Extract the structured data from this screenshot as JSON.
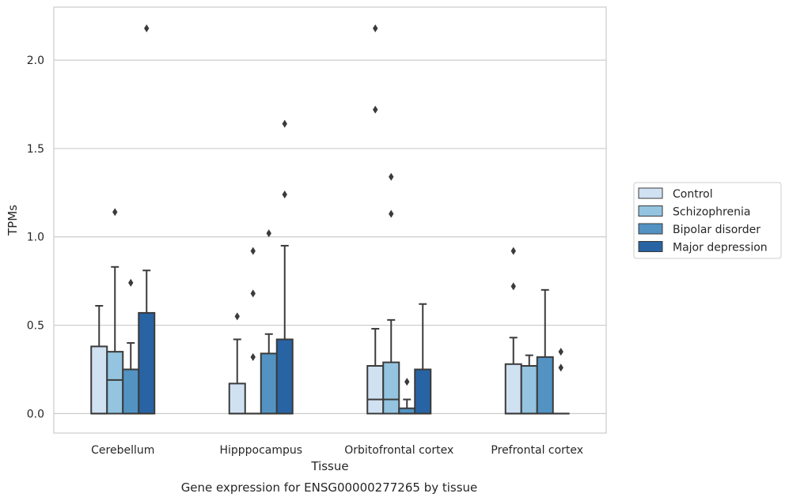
{
  "chart_data": {
    "type": "box",
    "title": "",
    "caption": "Gene expression for ENSG00000277265 by tissue",
    "xlabel": "Tissue",
    "ylabel": "TPMs",
    "ylim": [
      -0.11,
      2.3
    ],
    "yticks": [
      0.0,
      0.5,
      1.0,
      1.5,
      2.0
    ],
    "ytick_labels": [
      "0.0",
      "0.5",
      "1.0",
      "1.5",
      "2.0"
    ],
    "grid": "horizontal",
    "legend_position": "right",
    "categories": [
      "Cerebellum",
      "Hipppocampus",
      "Orbitofrontal cortex",
      "Prefrontal cortex"
    ],
    "series": [
      {
        "name": "Control",
        "color": "#d0e1f2",
        "boxes": [
          {
            "q1": 0.0,
            "median": 0.0,
            "q3": 0.38,
            "whislo": 0.0,
            "whishi": 0.61,
            "fliers": []
          },
          {
            "q1": 0.0,
            "median": 0.0,
            "q3": 0.17,
            "whislo": 0.0,
            "whishi": 0.42,
            "fliers": [
              0.55
            ]
          },
          {
            "q1": 0.0,
            "median": 0.08,
            "q3": 0.27,
            "whislo": 0.0,
            "whishi": 0.48,
            "fliers": [
              1.72,
              2.18
            ]
          },
          {
            "q1": 0.0,
            "median": 0.0,
            "q3": 0.28,
            "whislo": 0.0,
            "whishi": 0.43,
            "fliers": [
              0.72,
              0.92
            ]
          }
        ]
      },
      {
        "name": "Schizophrenia",
        "color": "#94c4df",
        "boxes": [
          {
            "q1": 0.0,
            "median": 0.19,
            "q3": 0.35,
            "whislo": 0.0,
            "whishi": 0.83,
            "fliers": [
              1.14
            ]
          },
          {
            "q1": 0.0,
            "median": 0.0,
            "q3": 0.0,
            "whislo": 0.0,
            "whishi": 0.0,
            "fliers": [
              0.32,
              0.68,
              0.92
            ]
          },
          {
            "q1": 0.0,
            "median": 0.08,
            "q3": 0.29,
            "whislo": 0.0,
            "whishi": 0.53,
            "fliers": [
              1.13,
              1.34
            ]
          },
          {
            "q1": 0.0,
            "median": 0.0,
            "q3": 0.27,
            "whislo": 0.0,
            "whishi": 0.33,
            "fliers": []
          }
        ]
      },
      {
        "name": "Bipolar disorder",
        "color": "#5393c3",
        "boxes": [
          {
            "q1": 0.0,
            "median": 0.0,
            "q3": 0.25,
            "whislo": 0.0,
            "whishi": 0.4,
            "fliers": [
              0.74
            ]
          },
          {
            "q1": 0.0,
            "median": 0.0,
            "q3": 0.34,
            "whislo": 0.0,
            "whishi": 0.45,
            "fliers": [
              1.02
            ]
          },
          {
            "q1": 0.0,
            "median": 0.0,
            "q3": 0.03,
            "whislo": 0.0,
            "whishi": 0.08,
            "fliers": [
              0.18
            ]
          },
          {
            "q1": 0.0,
            "median": 0.0,
            "q3": 0.32,
            "whislo": 0.0,
            "whishi": 0.7,
            "fliers": []
          }
        ]
      },
      {
        "name": "Major depression",
        "color": "#2863a3",
        "boxes": [
          {
            "q1": 0.0,
            "median": 0.0,
            "q3": 0.57,
            "whislo": 0.0,
            "whishi": 0.81,
            "fliers": [
              2.18
            ]
          },
          {
            "q1": 0.0,
            "median": 0.0,
            "q3": 0.42,
            "whislo": 0.0,
            "whishi": 0.95,
            "fliers": [
              1.24,
              1.64
            ]
          },
          {
            "q1": 0.0,
            "median": 0.0,
            "q3": 0.25,
            "whislo": 0.0,
            "whishi": 0.62,
            "fliers": []
          },
          {
            "q1": 0.0,
            "median": 0.0,
            "q3": 0.0,
            "whislo": 0.0,
            "whishi": 0.0,
            "fliers": [
              0.26,
              0.35
            ]
          }
        ]
      }
    ]
  }
}
